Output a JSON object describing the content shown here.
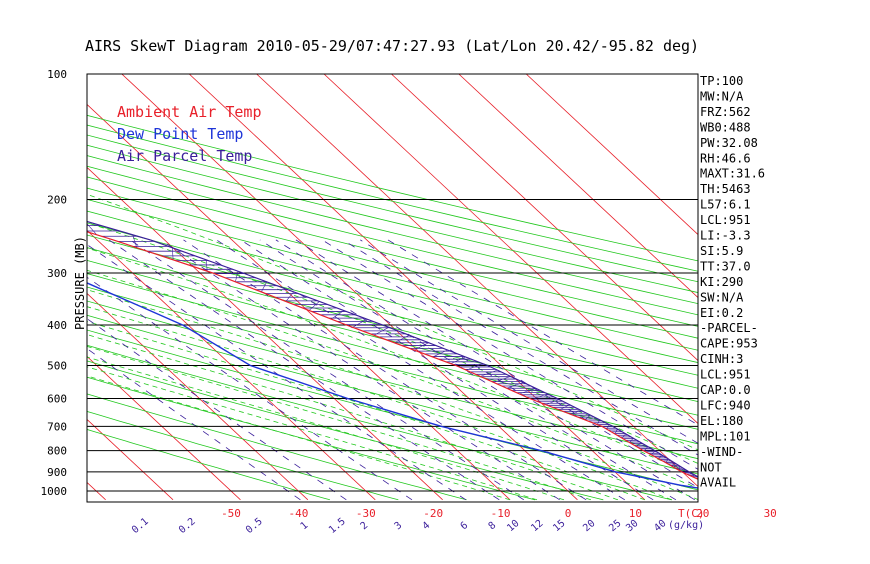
{
  "chart_data": {
    "type": "line",
    "title": "AIRS SkewT Diagram 2010-05-29/07:47:27.93 (Lat/Lon 20.42/-95.82 deg)",
    "ylabel": "PRESSURE (MB)",
    "xlabel": "T(C)",
    "mixing_ratio_unit": "g/kg",
    "y_scale": "log",
    "ylim": [
      1050,
      100
    ],
    "xlim": [
      -52,
      40
    ],
    "grid": true,
    "y_ticks": [
      100,
      200,
      300,
      400,
      500,
      600,
      700,
      800,
      900,
      1000
    ],
    "x_ticks_bottom": [
      -50,
      -40,
      -30,
      -20,
      -10,
      0,
      10,
      20,
      30
    ],
    "x_ticks_top": [
      -120,
      -110,
      -100,
      -90,
      -80,
      -70,
      -60,
      -50,
      -40
    ],
    "mixing_ratio_labels": [
      "0.1",
      "0.2",
      "0.5",
      "1",
      "1.5",
      "2",
      "3",
      "4",
      "6",
      "8",
      "10",
      "12",
      "15",
      "20",
      "25",
      "30",
      "40"
    ],
    "legend": {
      "placement": "top-left",
      "entries": [
        {
          "label": "Ambient Air Temp",
          "color": "#e8202a"
        },
        {
          "label": "Dew Point Temp",
          "color": "#1e34d8"
        },
        {
          "label": "Air Parcel Temp",
          "color": "#3a1e9a"
        }
      ]
    },
    "series": [
      {
        "name": "Ambient Air Temp",
        "color": "#e8202a",
        "points": [
          [
            1000,
            28
          ],
          [
            970,
            23.2
          ],
          [
            950,
            21.6
          ],
          [
            900,
            19.9
          ],
          [
            850,
            18.9
          ],
          [
            800,
            17.6
          ],
          [
            700,
            15.3
          ],
          [
            600,
            9.0
          ],
          [
            500,
            3.3
          ],
          [
            400,
            -6.5
          ],
          [
            300,
            -18.1
          ],
          [
            250,
            -27.6
          ],
          [
            200,
            -40.5
          ],
          [
            170,
            -52.3
          ],
          [
            150,
            -64
          ],
          [
            120,
            -74.3
          ],
          [
            100,
            -79
          ]
        ]
      },
      {
        "name": "Dew Point Temp",
        "color": "#1e34d8",
        "points": [
          [
            1000,
            22
          ],
          [
            970,
            17.8
          ],
          [
            900,
            10.1
          ],
          [
            800,
            2.4
          ],
          [
            700,
            -8.5
          ],
          [
            600,
            -18
          ],
          [
            500,
            -27.2
          ],
          [
            400,
            -30.8
          ],
          [
            300,
            -40.1
          ],
          [
            250,
            -48.0
          ],
          [
            200,
            -59.6
          ],
          [
            150,
            -72
          ],
          [
            100,
            -85
          ]
        ]
      },
      {
        "name": "Air Parcel Temp",
        "color": "#3a1e9a",
        "points": [
          [
            1000,
            28
          ],
          [
            951,
            22.1
          ],
          [
            900,
            21
          ],
          [
            800,
            19.3
          ],
          [
            700,
            16.9
          ],
          [
            600,
            13.1
          ],
          [
            500,
            8.0
          ],
          [
            400,
            -1.1
          ],
          [
            300,
            -13.6
          ],
          [
            250,
            -22.1
          ],
          [
            200,
            -36.4
          ],
          [
            180,
            -45.6
          ],
          [
            150,
            -56.8
          ],
          [
            100,
            -83
          ]
        ]
      }
    ],
    "indices_panel": [
      "TP:100",
      "MW:N/A",
      "FRZ:562",
      "WB0:488",
      "PW:32.08",
      "RH:46.6",
      "MAXT:31.6",
      "TH:5463",
      "L57:6.1",
      "LCL:951",
      "LI:-3.3",
      "SI:5.9",
      "TT:37.0",
      "KI:290",
      "SW:N/A",
      "EI:0.2",
      "-PARCEL-",
      "CAPE:953",
      "CINH:3",
      "LCL:951",
      "CAP:0.0",
      "LFC:940",
      "EL:180",
      "MPL:101",
      "-WIND-",
      "NOT",
      "AVAIL"
    ],
    "colors": {
      "isotherm": "#e8202a",
      "dry_adiabat": "#22c81e",
      "moist_adiabat": "#22c81e",
      "mixing_ratio": "#3a1e9a",
      "isobar": "#000000",
      "cape_hatch": "#3a1e9a"
    }
  }
}
